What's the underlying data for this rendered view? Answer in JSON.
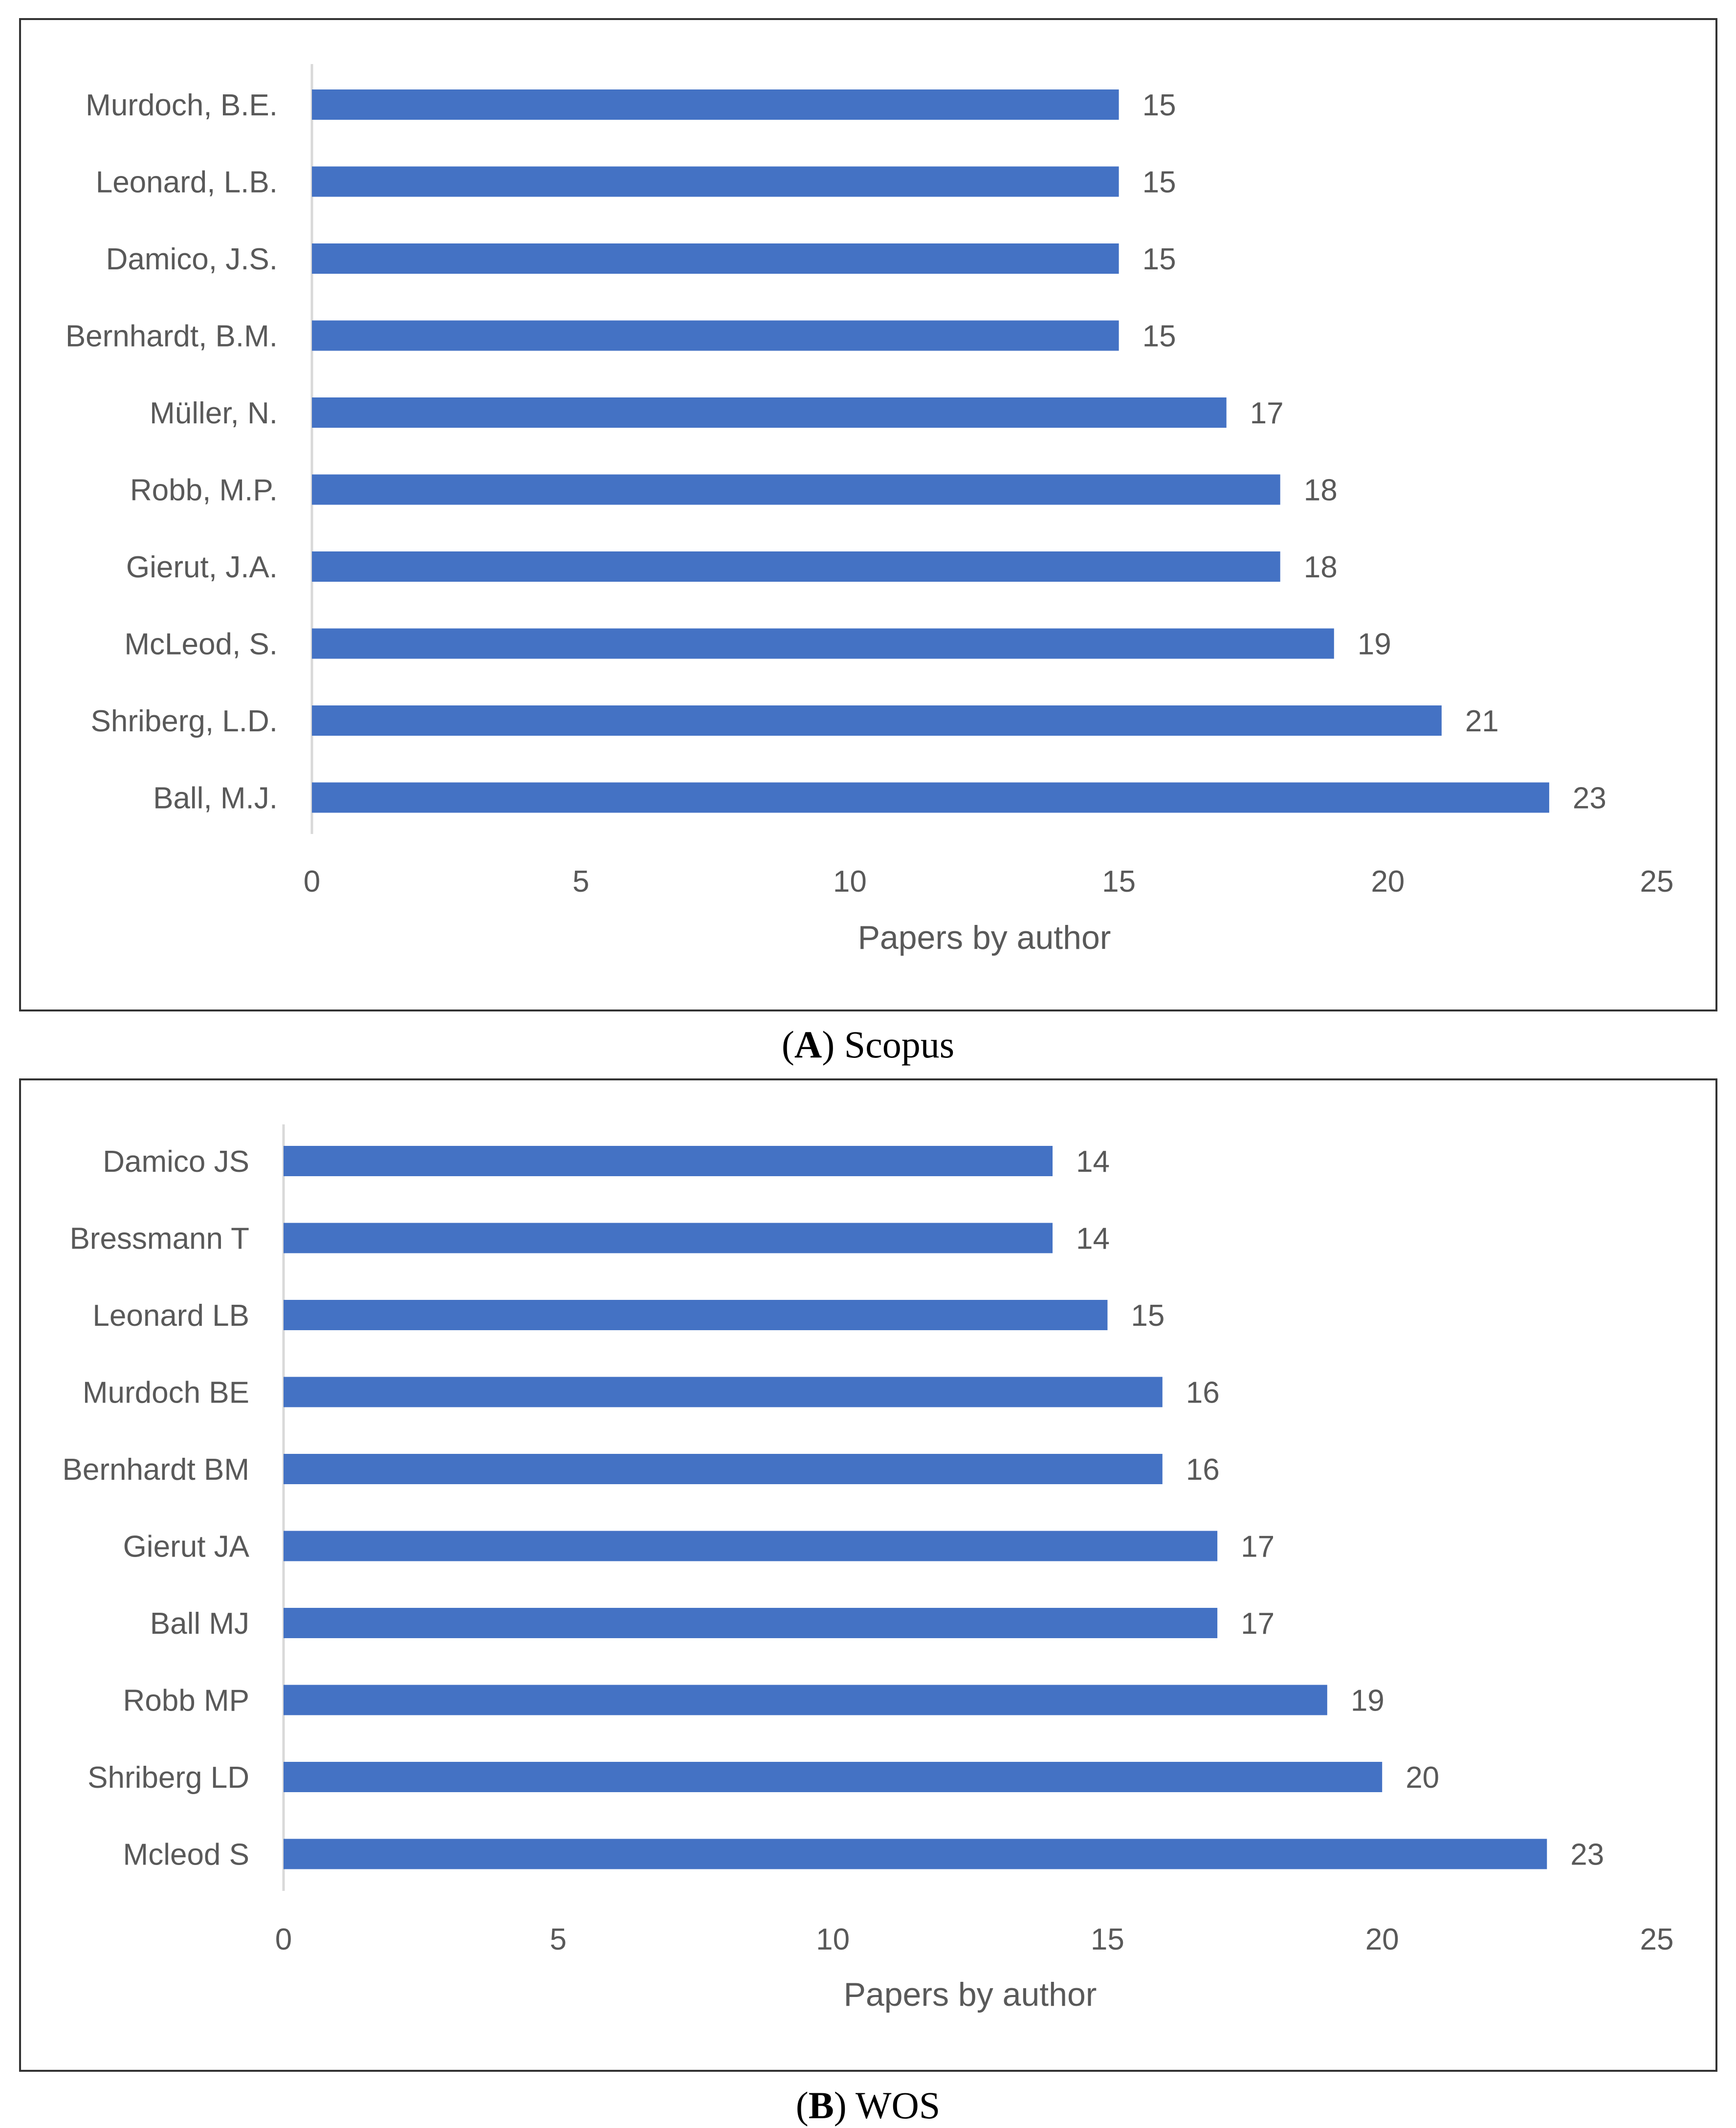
{
  "chart_data": [
    {
      "type": "bar",
      "orientation": "horizontal",
      "categories": [
        "Murdoch, B.E.",
        "Leonard, L.B.",
        "Damico, J.S.",
        "Bernhardt, B.M.",
        "Müller, N.",
        "Robb, M.P.",
        "Gierut, J.A.",
        "McLeod, S.",
        "Shriberg, L.D.",
        "Ball, M.J."
      ],
      "values": [
        15,
        15,
        15,
        15,
        17,
        18,
        18,
        19,
        21,
        23
      ],
      "xlabel": "Papers by author",
      "xlim": [
        0,
        25
      ],
      "xticks": [
        0,
        5,
        10,
        15,
        20,
        25
      ],
      "bar_color": "#4472C4",
      "grid": false,
      "caption_letter": "A",
      "caption_text": "Scopus"
    },
    {
      "type": "bar",
      "orientation": "horizontal",
      "categories": [
        "Damico JS",
        "Bressmann T",
        "Leonard LB",
        "Murdoch BE",
        "Bernhardt BM",
        "Gierut JA",
        "Ball MJ",
        "Robb MP",
        "Shriberg LD",
        "Mcleod S"
      ],
      "values": [
        14,
        14,
        15,
        16,
        16,
        17,
        17,
        19,
        20,
        23
      ],
      "xlabel": "Papers by author",
      "xlim": [
        0,
        25
      ],
      "xticks": [
        0,
        5,
        10,
        15,
        20,
        25
      ],
      "bar_color": "#4472C4",
      "grid": false,
      "caption_letter": "B",
      "caption_text": "WOS"
    }
  ]
}
